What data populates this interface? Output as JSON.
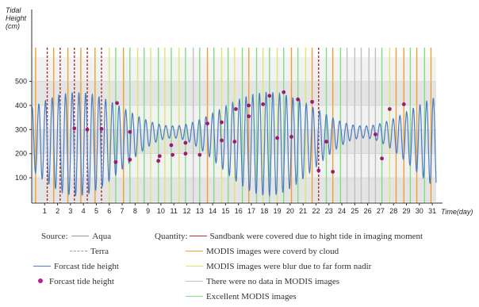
{
  "chart_data": {
    "type": "line",
    "ylabel": "Tidal Height (cm)",
    "ylabel_lines": [
      "Tidal",
      "Height",
      "(cm)"
    ],
    "xlabel": "Time(day)",
    "y_ticks": [
      100,
      200,
      300,
      400,
      500
    ],
    "x_ticks": [
      1,
      2,
      3,
      4,
      5,
      6,
      7,
      8,
      9,
      10,
      11,
      12,
      13,
      14,
      15,
      16,
      17,
      18,
      19,
      20,
      21,
      22,
      23,
      24,
      25,
      26,
      27,
      28,
      29,
      30,
      31
    ],
    "xlim": [
      0,
      31.3
    ],
    "ylim": [
      -5,
      640
    ],
    "colors": {
      "forecast_line": "#4a7cc1",
      "forecast_point": "#9b1c6e",
      "aqua": "#9a9a9a",
      "terra": "#9a9a9a",
      "sandbank": "#b03030",
      "cloud": "#f0a030",
      "blur": "#d8e870",
      "nodata": "#c0c0c0",
      "excellent": "#80dd80"
    },
    "image_quality_lines": [
      {
        "x": 0.3,
        "cat": "cloud",
        "style": "solid"
      },
      {
        "x": 1.2,
        "cat": "sandbank",
        "style": "dashed"
      },
      {
        "x": 1.7,
        "cat": "cloud",
        "style": "solid"
      },
      {
        "x": 2.2,
        "cat": "sandbank",
        "style": "dashed"
      },
      {
        "x": 2.8,
        "cat": "cloud",
        "style": "solid"
      },
      {
        "x": 3.3,
        "cat": "sandbank",
        "style": "dashed"
      },
      {
        "x": 3.8,
        "cat": "cloud",
        "style": "solid"
      },
      {
        "x": 4.3,
        "cat": "sandbank",
        "style": "dashed"
      },
      {
        "x": 4.9,
        "cat": "cloud",
        "style": "solid"
      },
      {
        "x": 5.4,
        "cat": "sandbank",
        "style": "dashed"
      },
      {
        "x": 6.0,
        "cat": "blur",
        "style": "solid"
      },
      {
        "x": 6.5,
        "cat": "excellent",
        "style": "solid"
      },
      {
        "x": 7.1,
        "cat": "cloud",
        "style": "solid"
      },
      {
        "x": 7.6,
        "cat": "excellent",
        "style": "solid"
      },
      {
        "x": 8.2,
        "cat": "blur",
        "style": "solid"
      },
      {
        "x": 8.7,
        "cat": "excellent",
        "style": "solid"
      },
      {
        "x": 9.2,
        "cat": "blur",
        "style": "solid"
      },
      {
        "x": 9.8,
        "cat": "excellent",
        "style": "solid"
      },
      {
        "x": 10.3,
        "cat": "blur",
        "style": "solid"
      },
      {
        "x": 10.8,
        "cat": "excellent",
        "style": "solid"
      },
      {
        "x": 11.4,
        "cat": "blur",
        "style": "solid"
      },
      {
        "x": 11.9,
        "cat": "excellent",
        "style": "solid"
      },
      {
        "x": 12.5,
        "cat": "nodata",
        "style": "solid"
      },
      {
        "x": 13.0,
        "cat": "excellent",
        "style": "solid"
      },
      {
        "x": 13.6,
        "cat": "cloud",
        "style": "solid"
      },
      {
        "x": 14.1,
        "cat": "excellent",
        "style": "solid"
      },
      {
        "x": 14.7,
        "cat": "blur",
        "style": "solid"
      },
      {
        "x": 15.2,
        "cat": "excellent",
        "style": "solid"
      },
      {
        "x": 15.7,
        "cat": "blur",
        "style": "solid"
      },
      {
        "x": 16.3,
        "cat": "excellent",
        "style": "solid"
      },
      {
        "x": 16.8,
        "cat": "cloud",
        "style": "solid"
      },
      {
        "x": 17.4,
        "cat": "excellent",
        "style": "solid"
      },
      {
        "x": 17.9,
        "cat": "blur",
        "style": "solid"
      },
      {
        "x": 18.4,
        "cat": "excellent",
        "style": "solid"
      },
      {
        "x": 19.0,
        "cat": "blur",
        "style": "solid"
      },
      {
        "x": 19.5,
        "cat": "excellent",
        "style": "solid"
      },
      {
        "x": 20.1,
        "cat": "cloud",
        "style": "solid"
      },
      {
        "x": 20.6,
        "cat": "excellent",
        "style": "solid"
      },
      {
        "x": 21.2,
        "cat": "blur",
        "style": "solid"
      },
      {
        "x": 21.7,
        "cat": "cloud",
        "style": "solid"
      },
      {
        "x": 22.2,
        "cat": "sandbank",
        "style": "dashed"
      },
      {
        "x": 22.8,
        "cat": "excellent",
        "style": "solid"
      },
      {
        "x": 23.3,
        "cat": "cloud",
        "style": "solid"
      },
      {
        "x": 23.9,
        "cat": "excellent",
        "style": "solid"
      },
      {
        "x": 24.4,
        "cat": "nodata",
        "style": "solid"
      },
      {
        "x": 25.0,
        "cat": "nodata",
        "style": "solid"
      },
      {
        "x": 25.5,
        "cat": "nodata",
        "style": "solid"
      },
      {
        "x": 26.1,
        "cat": "nodata",
        "style": "solid"
      },
      {
        "x": 26.6,
        "cat": "nodata",
        "style": "solid"
      },
      {
        "x": 27.1,
        "cat": "excellent",
        "style": "solid"
      },
      {
        "x": 27.7,
        "cat": "blur",
        "style": "solid"
      },
      {
        "x": 28.2,
        "cat": "cloud",
        "style": "solid"
      },
      {
        "x": 28.8,
        "cat": "cloud",
        "style": "solid"
      },
      {
        "x": 29.3,
        "cat": "excellent",
        "style": "solid"
      },
      {
        "x": 29.8,
        "cat": "cloud",
        "style": "solid"
      },
      {
        "x": 30.4,
        "cat": "excellent",
        "style": "solid"
      },
      {
        "x": 30.9,
        "cat": "cloud",
        "style": "solid"
      }
    ],
    "forecast_points": [
      {
        "x": 3.3,
        "y": 305
      },
      {
        "x": 4.3,
        "y": 300
      },
      {
        "x": 5.4,
        "y": 303
      },
      {
        "x": 6.5,
        "y": 165
      },
      {
        "x": 6.6,
        "y": 410
      },
      {
        "x": 7.6,
        "y": 290
      },
      {
        "x": 7.6,
        "y": 175
      },
      {
        "x": 9.8,
        "y": 170
      },
      {
        "x": 9.9,
        "y": 190
      },
      {
        "x": 10.8,
        "y": 235
      },
      {
        "x": 10.9,
        "y": 195
      },
      {
        "x": 11.9,
        "y": 245
      },
      {
        "x": 11.9,
        "y": 200
      },
      {
        "x": 13.0,
        "y": 195
      },
      {
        "x": 13.6,
        "y": 325
      },
      {
        "x": 14.7,
        "y": 255
      },
      {
        "x": 14.7,
        "y": 330
      },
      {
        "x": 15.7,
        "y": 250
      },
      {
        "x": 15.8,
        "y": 385
      },
      {
        "x": 16.8,
        "y": 355
      },
      {
        "x": 16.8,
        "y": 400
      },
      {
        "x": 17.9,
        "y": 405
      },
      {
        "x": 18.4,
        "y": 440
      },
      {
        "x": 19.0,
        "y": 265
      },
      {
        "x": 19.5,
        "y": 455
      },
      {
        "x": 20.1,
        "y": 270
      },
      {
        "x": 20.6,
        "y": 425
      },
      {
        "x": 21.7,
        "y": 415
      },
      {
        "x": 22.2,
        "y": 130
      },
      {
        "x": 22.8,
        "y": 250
      },
      {
        "x": 23.3,
        "y": 125
      },
      {
        "x": 26.6,
        "y": 280
      },
      {
        "x": 27.1,
        "y": 180
      },
      {
        "x": 27.7,
        "y": 385
      },
      {
        "x": 28.8,
        "y": 405
      }
    ]
  },
  "legend": {
    "source_label": "Source:",
    "aqua_label": "Aqua",
    "terra_label": "Terra",
    "quantity_label": "Quantity:",
    "sandbank_label": "Sandbank were covered due to hight tide in imaging moment",
    "cloud_label": "MODIS images were coverd by cloud",
    "blur_label": "MODIS images were blur  due to far form nadir",
    "nodata_label": "There were no data in MODIS images",
    "excellent_label": "Excellent MODIS images",
    "forecast_line_label": "Forcast tide height",
    "forecast_point_label": "Forcast tide height"
  }
}
